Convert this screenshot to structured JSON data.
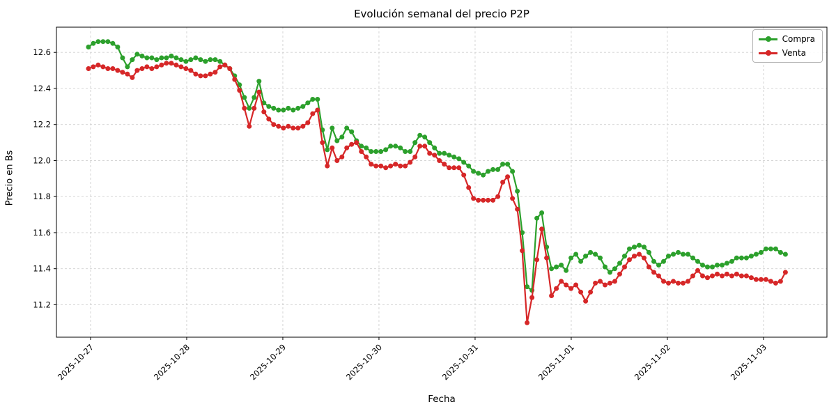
{
  "chart_data": {
    "type": "line",
    "title": "Evolución semanal del precio P2P",
    "xlabel": "Fecha",
    "ylabel": "Precio en Bs",
    "grid": true,
    "legend_position": "upper right",
    "marker": "o",
    "x_unit": "days since 2025-10-27 00:00",
    "x_start": -0.022,
    "x_step": 0.0507,
    "xlim": [
      -0.355,
      7.66
    ],
    "ylim": [
      11.02,
      12.74
    ],
    "x_ticks": [
      0,
      1,
      2,
      3,
      4,
      5,
      6,
      7
    ],
    "x_tick_labels": [
      "2025-10-27",
      "2025-10-28",
      "2025-10-29",
      "2025-10-30",
      "2025-10-31",
      "2025-11-01",
      "2025-11-02",
      "2025-11-03"
    ],
    "y_ticks": [
      11.2,
      11.4,
      11.6,
      11.8,
      12.0,
      12.2,
      12.4,
      12.6
    ],
    "series": [
      {
        "name": "Compra",
        "color": "#2ca02c",
        "values": [
          12.63,
          12.65,
          12.66,
          12.66,
          12.66,
          12.65,
          12.63,
          12.57,
          12.52,
          12.56,
          12.59,
          12.58,
          12.57,
          12.57,
          12.56,
          12.57,
          12.57,
          12.58,
          12.57,
          12.56,
          12.55,
          12.56,
          12.57,
          12.56,
          12.55,
          12.56,
          12.56,
          12.55,
          12.53,
          12.51,
          12.47,
          12.42,
          12.35,
          12.29,
          12.35,
          12.44,
          12.32,
          12.3,
          12.29,
          12.28,
          12.28,
          12.29,
          12.28,
          12.29,
          12.3,
          12.32,
          12.34,
          12.34,
          12.17,
          12.06,
          12.18,
          12.11,
          12.13,
          12.18,
          12.16,
          12.11,
          12.08,
          12.07,
          12.05,
          12.05,
          12.05,
          12.06,
          12.08,
          12.08,
          12.07,
          12.05,
          12.05,
          12.1,
          12.14,
          12.13,
          12.1,
          12.07,
          12.04,
          12.04,
          12.03,
          12.02,
          12.01,
          11.99,
          11.97,
          11.94,
          11.93,
          11.92,
          11.94,
          11.95,
          11.95,
          11.98,
          11.98,
          11.94,
          11.83,
          11.6,
          11.3,
          11.28,
          11.68,
          11.71,
          11.52,
          11.4,
          11.41,
          11.42,
          11.39,
          11.46,
          11.48,
          11.44,
          11.47,
          11.49,
          11.48,
          11.46,
          11.41,
          11.38,
          11.4,
          11.43,
          11.47,
          11.51,
          11.52,
          11.53,
          11.52,
          11.49,
          11.44,
          11.42,
          11.44,
          11.47,
          11.48,
          11.49,
          11.48,
          11.48,
          11.46,
          11.44,
          11.42,
          11.41,
          11.41,
          11.42,
          11.42,
          11.43,
          11.44,
          11.46,
          11.46,
          11.46,
          11.47,
          11.48,
          11.49,
          11.51,
          11.51,
          11.51,
          11.49,
          11.48
        ]
      },
      {
        "name": "Venta",
        "color": "#d62728",
        "values": [
          12.51,
          12.52,
          12.53,
          12.52,
          12.51,
          12.51,
          12.5,
          12.49,
          12.48,
          12.46,
          12.5,
          12.51,
          12.52,
          12.51,
          12.52,
          12.53,
          12.54,
          12.54,
          12.53,
          12.52,
          12.51,
          12.5,
          12.48,
          12.47,
          12.47,
          12.48,
          12.49,
          12.52,
          12.53,
          12.51,
          12.45,
          12.39,
          12.29,
          12.19,
          12.29,
          12.38,
          12.27,
          12.23,
          12.2,
          12.19,
          12.18,
          12.19,
          12.18,
          12.18,
          12.19,
          12.21,
          12.26,
          12.28,
          12.1,
          11.97,
          12.07,
          12.0,
          12.02,
          12.07,
          12.09,
          12.1,
          12.05,
          12.02,
          11.98,
          11.97,
          11.97,
          11.96,
          11.97,
          11.98,
          11.97,
          11.97,
          11.99,
          12.02,
          12.08,
          12.08,
          12.04,
          12.03,
          12.0,
          11.98,
          11.96,
          11.96,
          11.96,
          11.92,
          11.85,
          11.79,
          11.78,
          11.78,
          11.78,
          11.78,
          11.8,
          11.88,
          11.91,
          11.79,
          11.73,
          11.5,
          11.1,
          11.24,
          11.45,
          11.62,
          11.46,
          11.25,
          11.29,
          11.33,
          11.31,
          11.29,
          11.31,
          11.27,
          11.22,
          11.27,
          11.32,
          11.33,
          11.31,
          11.32,
          11.33,
          11.37,
          11.41,
          11.45,
          11.47,
          11.48,
          11.46,
          11.41,
          11.38,
          11.36,
          11.33,
          11.32,
          11.33,
          11.32,
          11.32,
          11.33,
          11.36,
          11.39,
          11.36,
          11.35,
          11.36,
          11.37,
          11.36,
          11.37,
          11.36,
          11.37,
          11.36,
          11.36,
          11.35,
          11.34,
          11.34,
          11.34,
          11.33,
          11.32,
          11.33,
          11.38
        ]
      }
    ]
  }
}
